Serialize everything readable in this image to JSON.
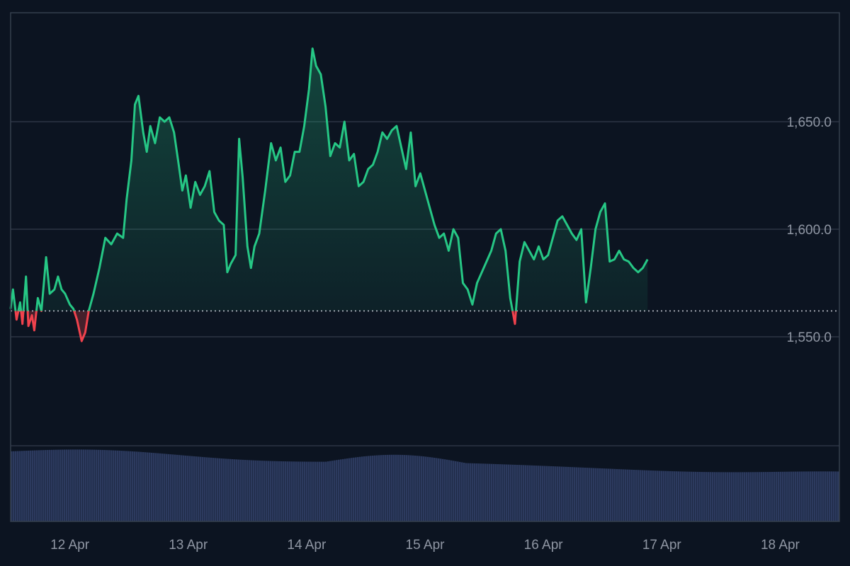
{
  "theme": {
    "background": "#0c1421",
    "grid": "#2c3544",
    "frame": "#353e4d",
    "up_color": "#26c785",
    "down_color": "#f0424d",
    "area_fill": "#26c785",
    "volume_color": "#2c3a5e",
    "baseline_color": "#c9ced6",
    "tick_label_color": "#8f96a3"
  },
  "chart_data": {
    "type": "area",
    "title": "",
    "xlabel": "",
    "ylabel": "",
    "baseline": 1562,
    "ylim": [
      1520,
      1700
    ],
    "grid": true,
    "y_ticks": [
      {
        "value": 1650,
        "label": "1,650.0"
      },
      {
        "value": 1600,
        "label": "1,600.0"
      },
      {
        "value": 1550,
        "label": "1,550.0"
      }
    ],
    "x_ticks": [
      {
        "day": 1,
        "label": "12 Apr"
      },
      {
        "day": 2,
        "label": "13 Apr"
      },
      {
        "day": 3,
        "label": "14 Apr"
      },
      {
        "day": 4,
        "label": "15 Apr"
      },
      {
        "day": 5,
        "label": "16 Apr"
      },
      {
        "day": 6,
        "label": "17 Apr"
      },
      {
        "day": 7,
        "label": "18 Apr"
      }
    ],
    "x_range": [
      0.5,
      7.5
    ],
    "series": [
      {
        "values": [
          [
            0.5,
            1563
          ],
          [
            0.52,
            1572
          ],
          [
            0.55,
            1558
          ],
          [
            0.58,
            1566
          ],
          [
            0.6,
            1556
          ],
          [
            0.63,
            1578
          ],
          [
            0.65,
            1555
          ],
          [
            0.68,
            1560
          ],
          [
            0.7,
            1553
          ],
          [
            0.73,
            1568
          ],
          [
            0.76,
            1562
          ],
          [
            0.8,
            1587
          ],
          [
            0.83,
            1570
          ],
          [
            0.87,
            1572
          ],
          [
            0.9,
            1578
          ],
          [
            0.93,
            1572
          ],
          [
            0.96,
            1570
          ],
          [
            1.0,
            1565
          ],
          [
            1.03,
            1563
          ],
          [
            1.06,
            1558
          ],
          [
            1.1,
            1548
          ],
          [
            1.13,
            1552
          ],
          [
            1.16,
            1562
          ],
          [
            1.2,
            1570
          ],
          [
            1.25,
            1582
          ],
          [
            1.3,
            1596
          ],
          [
            1.35,
            1593
          ],
          [
            1.4,
            1598
          ],
          [
            1.45,
            1596
          ],
          [
            1.48,
            1614
          ],
          [
            1.52,
            1632
          ],
          [
            1.55,
            1658
          ],
          [
            1.58,
            1662
          ],
          [
            1.62,
            1645
          ],
          [
            1.65,
            1636
          ],
          [
            1.68,
            1648
          ],
          [
            1.72,
            1640
          ],
          [
            1.76,
            1652
          ],
          [
            1.8,
            1650
          ],
          [
            1.84,
            1652
          ],
          [
            1.88,
            1645
          ],
          [
            1.92,
            1630
          ],
          [
            1.95,
            1618
          ],
          [
            1.98,
            1625
          ],
          [
            2.02,
            1610
          ],
          [
            2.06,
            1622
          ],
          [
            2.1,
            1616
          ],
          [
            2.14,
            1620
          ],
          [
            2.18,
            1627
          ],
          [
            2.22,
            1608
          ],
          [
            2.26,
            1604
          ],
          [
            2.3,
            1602
          ],
          [
            2.33,
            1580
          ],
          [
            2.36,
            1584
          ],
          [
            2.4,
            1588
          ],
          [
            2.43,
            1642
          ],
          [
            2.46,
            1624
          ],
          [
            2.5,
            1592
          ],
          [
            2.53,
            1582
          ],
          [
            2.56,
            1592
          ],
          [
            2.6,
            1598
          ],
          [
            2.65,
            1618
          ],
          [
            2.7,
            1640
          ],
          [
            2.74,
            1632
          ],
          [
            2.78,
            1638
          ],
          [
            2.82,
            1622
          ],
          [
            2.86,
            1625
          ],
          [
            2.9,
            1636
          ],
          [
            2.94,
            1636
          ],
          [
            2.98,
            1648
          ],
          [
            3.02,
            1665
          ],
          [
            3.05,
            1684
          ],
          [
            3.08,
            1676
          ],
          [
            3.12,
            1672
          ],
          [
            3.16,
            1657
          ],
          [
            3.2,
            1634
          ],
          [
            3.24,
            1640
          ],
          [
            3.28,
            1638
          ],
          [
            3.32,
            1650
          ],
          [
            3.36,
            1632
          ],
          [
            3.4,
            1635
          ],
          [
            3.44,
            1620
          ],
          [
            3.48,
            1622
          ],
          [
            3.52,
            1628
          ],
          [
            3.56,
            1630
          ],
          [
            3.6,
            1636
          ],
          [
            3.64,
            1645
          ],
          [
            3.68,
            1642
          ],
          [
            3.72,
            1646
          ],
          [
            3.76,
            1648
          ],
          [
            3.8,
            1638
          ],
          [
            3.84,
            1628
          ],
          [
            3.88,
            1645
          ],
          [
            3.92,
            1620
          ],
          [
            3.96,
            1626
          ],
          [
            4.0,
            1618
          ],
          [
            4.04,
            1610
          ],
          [
            4.08,
            1602
          ],
          [
            4.12,
            1596
          ],
          [
            4.16,
            1598
          ],
          [
            4.2,
            1590
          ],
          [
            4.24,
            1600
          ],
          [
            4.28,
            1596
          ],
          [
            4.32,
            1575
          ],
          [
            4.36,
            1572
          ],
          [
            4.4,
            1565
          ],
          [
            4.44,
            1575
          ],
          [
            4.48,
            1580
          ],
          [
            4.52,
            1585
          ],
          [
            4.56,
            1590
          ],
          [
            4.6,
            1598
          ],
          [
            4.64,
            1600
          ],
          [
            4.68,
            1590
          ],
          [
            4.72,
            1568
          ],
          [
            4.76,
            1556
          ],
          [
            4.8,
            1585
          ],
          [
            4.84,
            1594
          ],
          [
            4.88,
            1590
          ],
          [
            4.92,
            1586
          ],
          [
            4.96,
            1592
          ],
          [
            5.0,
            1586
          ],
          [
            5.04,
            1588
          ],
          [
            5.08,
            1596
          ],
          [
            5.12,
            1604
          ],
          [
            5.16,
            1606
          ],
          [
            5.2,
            1602
          ],
          [
            5.24,
            1598
          ],
          [
            5.28,
            1595
          ],
          [
            5.32,
            1600
          ],
          [
            5.36,
            1566
          ],
          [
            5.4,
            1582
          ],
          [
            5.44,
            1600
          ],
          [
            5.48,
            1608
          ],
          [
            5.52,
            1612
          ],
          [
            5.56,
            1585
          ],
          [
            5.6,
            1586
          ],
          [
            5.64,
            1590
          ],
          [
            5.68,
            1586
          ],
          [
            5.72,
            1585
          ],
          [
            5.76,
            1582
          ],
          [
            5.8,
            1580
          ],
          [
            5.84,
            1582
          ],
          [
            5.88,
            1586
          ]
        ]
      }
    ],
    "volume": {
      "start": 100,
      "end": 67,
      "ylim": [
        0,
        108
      ]
    }
  }
}
